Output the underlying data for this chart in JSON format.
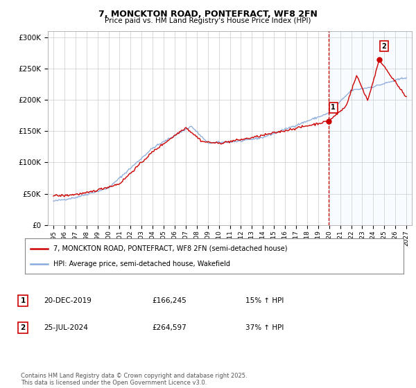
{
  "title1": "7, MONCKTON ROAD, PONTEFRACT, WF8 2FN",
  "title2": "Price paid vs. HM Land Registry's House Price Index (HPI)",
  "ylabel_ticks": [
    "£0",
    "£50K",
    "£100K",
    "£150K",
    "£200K",
    "£250K",
    "£300K"
  ],
  "ytick_vals": [
    0,
    50000,
    100000,
    150000,
    200000,
    250000,
    300000
  ],
  "ylim": [
    0,
    310000
  ],
  "xlim_start": 1994.5,
  "xlim_end": 2027.5,
  "legend_line1": "7, MONCKTON ROAD, PONTEFRACT, WF8 2FN (semi-detached house)",
  "legend_line2": "HPI: Average price, semi-detached house, Wakefield",
  "line1_color": "#cc0000",
  "line2_color": "#88aadd",
  "point1_date": "20-DEC-2019",
  "point1_price": "£166,245",
  "point1_hpi": "15% ↑ HPI",
  "point1_x": 2019.97,
  "point1_y": 166245,
  "point2_date": "25-JUL-2024",
  "point2_price": "£264,597",
  "point2_hpi": "37% ↑ HPI",
  "point2_x": 2024.56,
  "point2_y": 264597,
  "vline_color": "#cc0000",
  "shade_color": "#ddeeff",
  "copyright_text": "Contains HM Land Registry data © Crown copyright and database right 2025.\nThis data is licensed under the Open Government Licence v3.0.",
  "background_color": "#ffffff",
  "grid_color": "#cccccc",
  "xtick_years": [
    1995,
    1996,
    1997,
    1998,
    1999,
    2000,
    2001,
    2002,
    2003,
    2004,
    2005,
    2006,
    2007,
    2008,
    2009,
    2010,
    2011,
    2012,
    2013,
    2014,
    2015,
    2016,
    2017,
    2018,
    2019,
    2020,
    2021,
    2022,
    2023,
    2024,
    2025,
    2026,
    2027
  ]
}
